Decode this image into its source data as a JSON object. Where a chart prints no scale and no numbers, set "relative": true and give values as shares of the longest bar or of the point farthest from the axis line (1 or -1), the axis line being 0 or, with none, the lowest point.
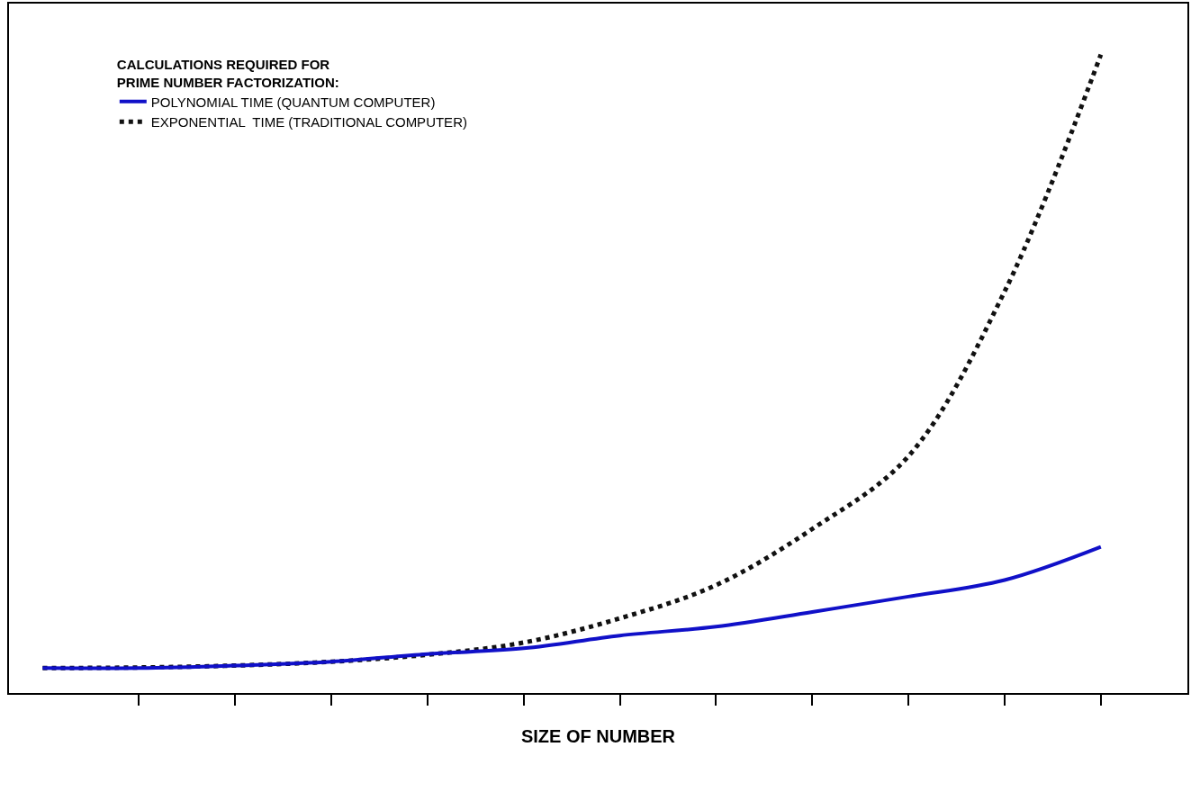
{
  "chart_data": {
    "type": "line",
    "relative": true,
    "xlabel": "SIZE OF NUMBER",
    "legend_title": "CALCULATIONS REQUIRED FOR\nPRIME NUMBER FACTORIZATION:",
    "legend": "top left",
    "tick_labels": false,
    "marker": "none",
    "categories": [
      null,
      null,
      null,
      null,
      null,
      null,
      null,
      null,
      null,
      null,
      null,
      null
    ],
    "series": [
      {
        "name": "POLYNOMIAL TIME (QUANTUM COMPUTER)",
        "color": "#1010c8",
        "line_style": "solid",
        "values": [
          0.039,
          0.039,
          0.043,
          0.049,
          0.061,
          0.07,
          0.09,
          0.104,
          0.127,
          0.151,
          0.177,
          0.229
        ]
      },
      {
        "name": "EXPONENTIAL  TIME (TRADITIONAL COMPUTER)",
        "color": "#111111",
        "line_style": "dotted",
        "values": [
          0.039,
          0.04,
          0.043,
          0.049,
          0.06,
          0.079,
          0.117,
          0.169,
          0.257,
          0.371,
          0.629,
          1
        ]
      }
    ]
  }
}
